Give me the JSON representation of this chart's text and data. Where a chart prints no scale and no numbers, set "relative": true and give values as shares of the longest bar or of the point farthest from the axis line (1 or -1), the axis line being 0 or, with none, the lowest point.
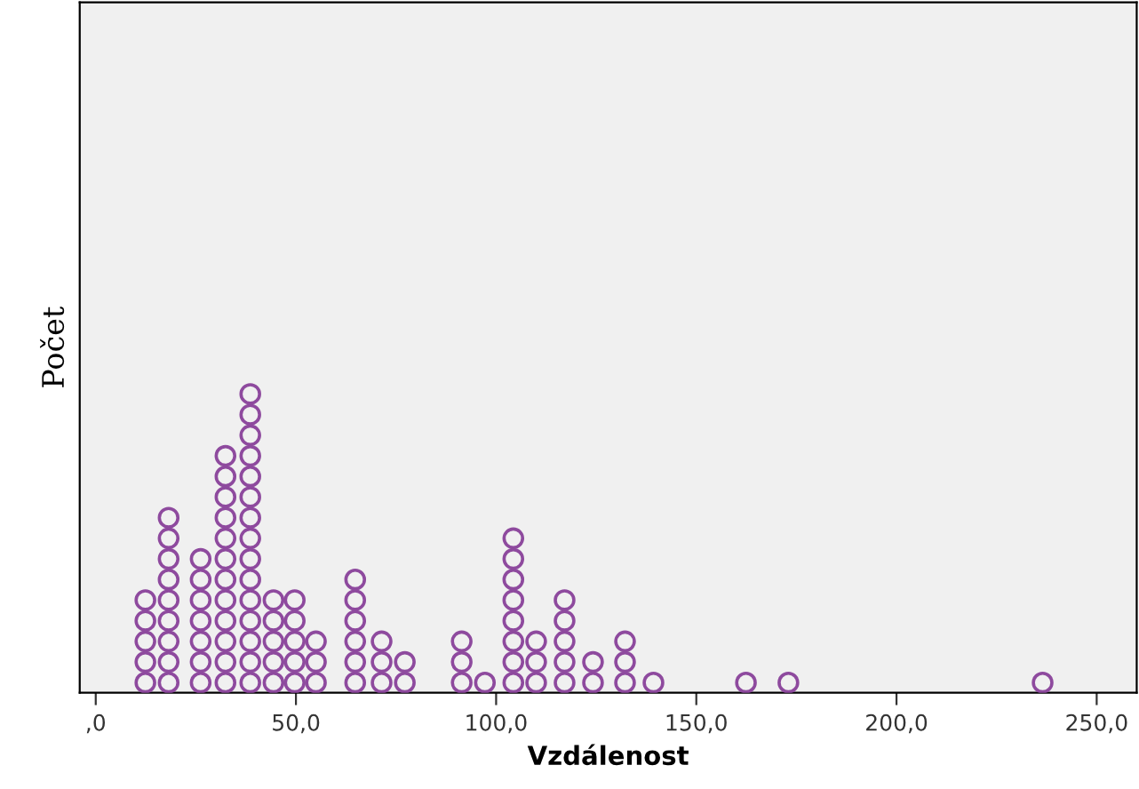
{
  "chart_data": {
    "type": "scatter",
    "relative": true,
    "xlabel": "Vzdálenost",
    "ylabel": "Počet",
    "color": "#8e4a9e",
    "marker": "circle",
    "grid": false,
    "legend": false,
    "tick_labels": "x",
    "x": [
      12.4,
      12.4,
      12.4,
      12.4,
      12.4,
      18.2,
      18.2,
      18.2,
      18.2,
      18.2,
      18.2,
      18.2,
      18.2,
      18.2,
      26.2,
      26.2,
      26.2,
      26.2,
      26.2,
      26.2,
      26.2,
      32.4,
      32.4,
      32.4,
      32.4,
      32.4,
      32.4,
      32.4,
      32.4,
      32.4,
      32.4,
      32.4,
      32.4,
      38.6,
      38.6,
      38.6,
      38.6,
      38.6,
      38.6,
      38.6,
      38.6,
      38.6,
      38.6,
      38.6,
      38.6,
      38.6,
      38.6,
      38.6,
      44.4,
      44.4,
      44.4,
      44.4,
      44.4,
      49.7,
      49.7,
      49.7,
      49.7,
      49.7,
      55.0,
      55.0,
      55.0,
      64.8,
      64.8,
      64.8,
      64.8,
      64.8,
      64.8,
      71.4,
      71.4,
      71.4,
      77.2,
      77.2,
      91.4,
      91.4,
      91.4,
      97.2,
      104.3,
      104.3,
      104.3,
      104.3,
      104.3,
      104.3,
      104.3,
      104.3,
      110.0,
      110.0,
      110.0,
      117.1,
      117.1,
      117.1,
      117.1,
      117.1,
      124.2,
      124.2,
      132.2,
      132.2,
      132.2,
      139.3,
      162.4,
      173.0,
      236.5
    ],
    "values": [
      0.034,
      0.103,
      0.172,
      0.241,
      0.31,
      0.034,
      0.103,
      0.172,
      0.241,
      0.31,
      0.379,
      0.448,
      0.517,
      0.586,
      0.034,
      0.103,
      0.172,
      0.241,
      0.31,
      0.379,
      0.448,
      0.034,
      0.103,
      0.172,
      0.241,
      0.31,
      0.379,
      0.448,
      0.517,
      0.586,
      0.655,
      0.724,
      0.793,
      0.034,
      0.103,
      0.172,
      0.241,
      0.31,
      0.379,
      0.448,
      0.517,
      0.586,
      0.655,
      0.724,
      0.793,
      0.862,
      0.931,
      1,
      0.034,
      0.103,
      0.172,
      0.241,
      0.31,
      0.034,
      0.103,
      0.172,
      0.241,
      0.31,
      0.034,
      0.103,
      0.172,
      0.034,
      0.103,
      0.172,
      0.241,
      0.31,
      0.379,
      0.034,
      0.103,
      0.172,
      0.034,
      0.103,
      0.034,
      0.103,
      0.172,
      0.034,
      0.034,
      0.103,
      0.172,
      0.241,
      0.31,
      0.379,
      0.448,
      0.517,
      0.034,
      0.103,
      0.172,
      0.034,
      0.103,
      0.172,
      0.241,
      0.31,
      0.034,
      0.103,
      0.034,
      0.103,
      0.172,
      0.034,
      0.034,
      0.034,
      0.034
    ],
    "xlim": [
      -4,
      260
    ],
    "xticks": [
      {
        "value": 0,
        "label": ",0"
      },
      {
        "value": 50,
        "label": "50,0"
      },
      {
        "value": 100,
        "label": "100,0"
      },
      {
        "value": 150,
        "label": "150,0"
      },
      {
        "value": 200,
        "label": "200,0"
      },
      {
        "value": 250,
        "label": "250,0"
      }
    ]
  }
}
